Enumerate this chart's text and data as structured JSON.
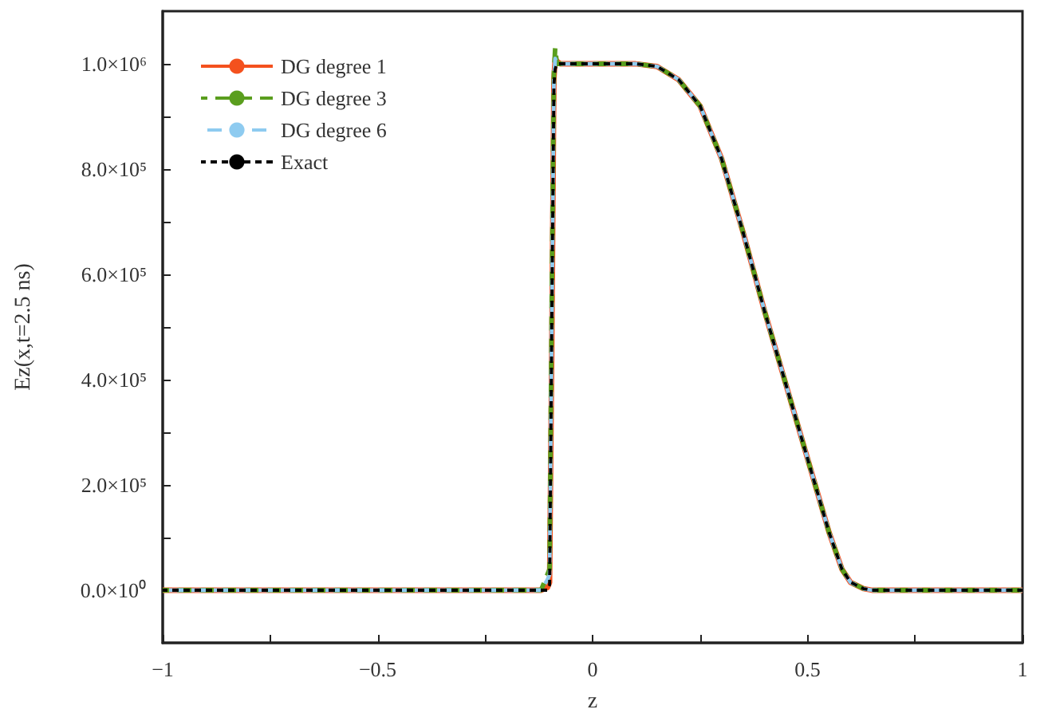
{
  "chart_data": {
    "type": "line",
    "xlabel": "z",
    "ylabel": "Ez(x,t=2.5 ns)",
    "x": [
      -1,
      -0.5,
      -0.2,
      -0.12,
      -0.105,
      -0.1,
      -0.095,
      -0.09,
      -0.087,
      -0.083,
      -0.075,
      0,
      0.1,
      0.15,
      0.2,
      0.25,
      0.3,
      0.35,
      0.4,
      0.45,
      0.5,
      0.55,
      0.58,
      0.6,
      0.63,
      0.65,
      0.7,
      1
    ],
    "series": [
      {
        "name": "DG degree 1",
        "color": "#f4511e",
        "line_style": "solid",
        "values": [
          0,
          0,
          0,
          0,
          5000.0,
          15000.0,
          450000.0,
          970000.0,
          1010000.0,
          1005000.0,
          1000000.0,
          1000000.0,
          1000000.0,
          995000.0,
          970000.0,
          920000.0,
          820000.0,
          680000.0,
          530000.0,
          390000.0,
          250000.0,
          110000.0,
          40000.0,
          15000.0,
          3000.0,
          0,
          0,
          0
        ]
      },
      {
        "name": "DG degree 3",
        "color": "#5a9e1e",
        "line_style": "dashed",
        "values": [
          0,
          0,
          0,
          0,
          30000.0,
          40000.0,
          550000.0,
          980000.0,
          1030000.0,
          1000000.0,
          1000000.0,
          1000000.0,
          1000000.0,
          995000.0,
          970000.0,
          920000.0,
          820000.0,
          680000.0,
          530000.0,
          390000.0,
          250000.0,
          110000.0,
          40000.0,
          15000.0,
          3000.0,
          0,
          0,
          0
        ]
      },
      {
        "name": "DG degree 6",
        "color": "#8ecbf0",
        "line_style": "dashed",
        "values": [
          0,
          0,
          0,
          0,
          20000.0,
          30000.0,
          500000.0,
          970000.0,
          1010000.0,
          1000000.0,
          1000000.0,
          1000000.0,
          1000000.0,
          995000.0,
          970000.0,
          920000.0,
          820000.0,
          680000.0,
          530000.0,
          390000.0,
          250000.0,
          110000.0,
          40000.0,
          15000.0,
          3000.0,
          0,
          0,
          0
        ]
      },
      {
        "name": "Exact",
        "color": "#000000",
        "line_style": "dotted",
        "values": [
          0,
          0,
          0,
          0,
          0,
          10000.0,
          500000.0,
          960000.0,
          990000.0,
          1000000.0,
          1000000.0,
          1000000.0,
          1000000.0,
          995000.0,
          970000.0,
          920000.0,
          820000.0,
          680000.0,
          530000.0,
          390000.0,
          250000.0,
          110000.0,
          40000.0,
          15000.0,
          3000.0,
          0,
          0,
          0
        ]
      }
    ],
    "xlim": [
      -1,
      1
    ],
    "xticks": [
      {
        "value": -1,
        "label": "−1"
      },
      {
        "value": -0.75,
        "label": null
      },
      {
        "value": -0.5,
        "label": "−0.5"
      },
      {
        "value": -0.25,
        "label": null
      },
      0,
      {
        "value": 0.25,
        "label": null
      },
      0.5,
      {
        "value": 0.75,
        "label": null
      },
      1
    ],
    "ylim": [
      -100000,
      1100000
    ],
    "yticks": [
      {
        "value": 0,
        "label": "0.0×10⁰"
      },
      {
        "value": 100000,
        "label": null
      },
      {
        "value": 200000,
        "label": "2.0×10⁵"
      },
      {
        "value": 300000,
        "label": null
      },
      {
        "value": 400000,
        "label": "4.0×10⁵"
      },
      {
        "value": 500000,
        "label": null
      },
      {
        "value": 600000,
        "label": "6.0×10⁵"
      },
      {
        "value": 700000,
        "label": null
      },
      {
        "value": 800000,
        "label": "8.0×10⁵"
      },
      {
        "value": 900000,
        "label": null
      },
      {
        "value": 1000000,
        "label": "1.0×10⁶"
      }
    ],
    "legend": "top left",
    "grid": false,
    "marker": "none"
  }
}
